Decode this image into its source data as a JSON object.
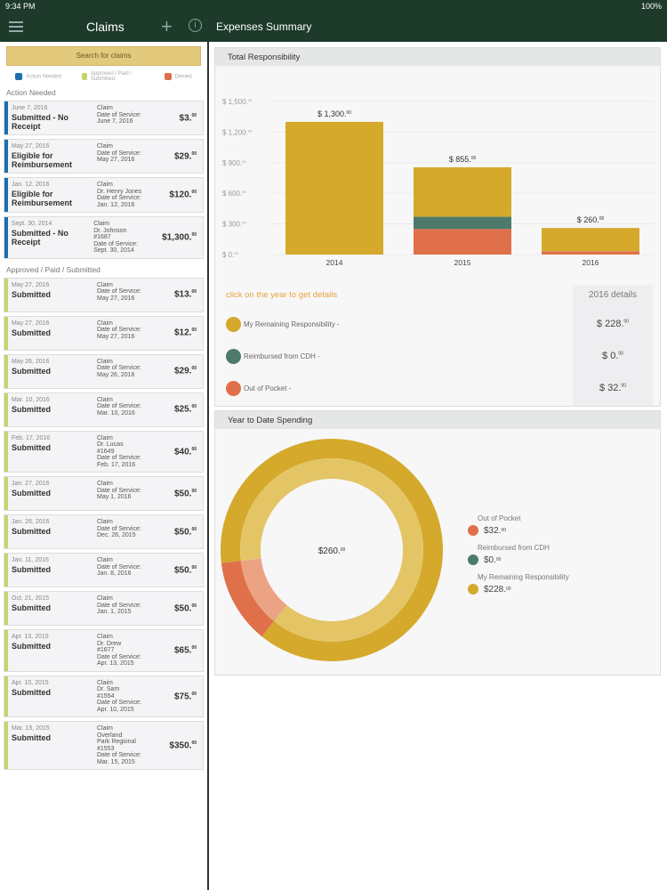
{
  "status": {
    "time": "9:34 PM",
    "battery": "100%"
  },
  "nav": {
    "title": "Claims",
    "detail_title": "Expenses Summary"
  },
  "left": {
    "search_label": "Search for claims",
    "legend": [
      {
        "label": "Action Needed",
        "color": "#1a6fb0"
      },
      {
        "label": "Approved / Paid / Submitted",
        "color": "#c4d56a"
      },
      {
        "label": "Denied",
        "color": "#e0704a"
      }
    ],
    "sections": [
      {
        "title": "Action Needed",
        "type": "action",
        "claims": [
          {
            "date": "June 7, 2016",
            "status": "Submitted - No Receipt",
            "lines": [
              "Claim",
              "Date of Service:",
              "June 7, 2016"
            ],
            "amount": "$3.",
            "cents": "00"
          },
          {
            "date": "May 27, 2016",
            "status": "Eligible for Reimbursement",
            "lines": [
              "Claim",
              "Date of Service:",
              "May 27, 2016"
            ],
            "amount": "$29.",
            "cents": "00"
          },
          {
            "date": "Jan. 12, 2016",
            "status": "Eligible for Reimbursement",
            "lines": [
              "Claim",
              "Dr. Henry Jones",
              "Date of Service:",
              "Jan. 12, 2016"
            ],
            "amount": "$120.",
            "cents": "00"
          },
          {
            "date": "Sept. 30, 2014",
            "status": "Submitted - No Receipt",
            "lines": [
              "Claim",
              "Dr. Johnson",
              "#1687",
              "Date of Service:",
              "Sept. 30, 2014"
            ],
            "amount": "$1,300.",
            "cents": "00"
          }
        ]
      },
      {
        "title": "Approved / Paid / Submitted",
        "type": "ok",
        "claims": [
          {
            "date": "May 27, 2016",
            "status": "Submitted",
            "lines": [
              "Claim",
              "Date of Service:",
              "May 27, 2016"
            ],
            "amount": "$13.",
            "cents": "00"
          },
          {
            "date": "May 27, 2016",
            "status": "Submitted",
            "lines": [
              "Claim",
              "Date of Service:",
              "May 27, 2016"
            ],
            "amount": "$12.",
            "cents": "00"
          },
          {
            "date": "May 26, 2016",
            "status": "Submitted",
            "lines": [
              "Claim",
              "Date of Service:",
              "May 26, 2016"
            ],
            "amount": "$29.",
            "cents": "00"
          },
          {
            "date": "Mar. 10, 2016",
            "status": "Submitted",
            "lines": [
              "Claim",
              "Date of Service:",
              "Mar. 10, 2016"
            ],
            "amount": "$25.",
            "cents": "00"
          },
          {
            "date": "Feb. 17, 2016",
            "status": "Submitted",
            "lines": [
              "Claim",
              "Dr. Lucas",
              "#1649",
              "Date of Service:",
              "Feb. 17, 2016"
            ],
            "amount": "$40.",
            "cents": "00"
          },
          {
            "date": "Jan. 27, 2016",
            "status": "Submitted",
            "lines": [
              "Claim",
              "Date of Service:",
              "May 1, 2016"
            ],
            "amount": "$50.",
            "cents": "00"
          },
          {
            "date": "Jan. 26, 2016",
            "status": "Submitted",
            "lines": [
              "Claim",
              "Date of Service:",
              "Dec. 26, 2015"
            ],
            "amount": "$50.",
            "cents": "00"
          },
          {
            "date": "Jan. 11, 2016",
            "status": "Submitted",
            "lines": [
              "Claim",
              "Date of Service:",
              "Jan. 8, 2016"
            ],
            "amount": "$50.",
            "cents": "00"
          },
          {
            "date": "Oct. 21, 2015",
            "status": "Submitted",
            "lines": [
              "Claim",
              "Date of Service:",
              "Jan. 1, 2015"
            ],
            "amount": "$50.",
            "cents": "00"
          },
          {
            "date": "Apr. 13, 2015",
            "status": "Submitted",
            "lines": [
              "Claim",
              "Dr. Drew",
              "#1677",
              "Date of Service:",
              "Apr. 13, 2015"
            ],
            "amount": "$65.",
            "cents": "00"
          },
          {
            "date": "Apr. 10, 2015",
            "status": "Submitted",
            "lines": [
              "Claim",
              "Dr. Sam",
              "#1554",
              "Date of Service:",
              "Apr. 10, 2015"
            ],
            "amount": "$75.",
            "cents": "00"
          },
          {
            "date": "Mar. 15, 2015",
            "status": "Submitted",
            "lines": [
              "Claim",
              "Overland",
              "Park Regional",
              "#1553",
              "Date of Service:",
              "Mar. 15, 2015"
            ],
            "amount": "$350.",
            "cents": "00"
          }
        ]
      }
    ]
  },
  "colors": {
    "remaining": "#d4a92c",
    "reimbursed": "#4e7a6c",
    "oop": "#e0704a",
    "header": "#1d3a2a"
  },
  "chart_data": [
    {
      "type": "bar",
      "stacked": true,
      "title": "Total Responsibility",
      "categories": [
        "2014",
        "2015",
        "2016"
      ],
      "ylim": [
        0,
        1500
      ],
      "yticks": [
        "$ 1,500.",
        "$ 1,200.",
        "$ 900.",
        "$ 600.",
        "$ 300.",
        "$ 0."
      ],
      "ytick_values": [
        1500,
        1200,
        900,
        600,
        300,
        0
      ],
      "totals": [
        "$ 1,300.",
        "$ 855.",
        "$ 260."
      ],
      "series": [
        {
          "name": "Out of Pocket",
          "color": "#e0704a",
          "values": [
            0,
            250,
            32
          ]
        },
        {
          "name": "Reimbursed from CDH",
          "color": "#4e7a6c",
          "values": [
            0,
            120,
            0
          ]
        },
        {
          "name": "My Remaining Responsibility",
          "color": "#d4a92c",
          "values": [
            1300,
            485,
            228
          ]
        }
      ]
    },
    {
      "type": "pie",
      "title": "Year to Date Spending",
      "center_label": "$260.",
      "slices": [
        {
          "name": "Out of Pocket",
          "value": 32,
          "label": "$32.",
          "color": "#e0704a"
        },
        {
          "name": "Reimbursed from CDH",
          "value": 0,
          "label": "$0.",
          "color": "#4e7a6c"
        },
        {
          "name": "My Remaining Responsibility",
          "value": 228,
          "label": "$228.",
          "color": "#d4a92c"
        }
      ]
    }
  ],
  "details": {
    "hint": "click on the year to get details",
    "title": "2016 details",
    "rows": [
      {
        "label": "My Remaining Responsibility -",
        "value": "$ 228.",
        "color": "#d4a92c"
      },
      {
        "label": "Reimbursed from CDH -",
        "value": "$ 0.",
        "color": "#4e7a6c"
      },
      {
        "label": "Out of Pocket -",
        "value": "$ 32.",
        "color": "#e0704a"
      }
    ]
  },
  "cents": "00"
}
